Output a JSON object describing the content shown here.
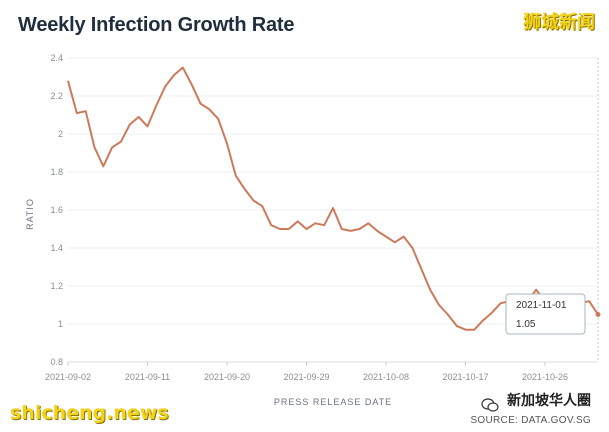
{
  "title": "Weekly Infection Growth Rate",
  "watermarks": {
    "top_right": "狮城新闻",
    "bottom_left": "shicheng.news",
    "bottom_right": "新加坡华人圈",
    "source": "SOURCE: DATA.GOV.SG"
  },
  "tooltip": {
    "date": "2021-11-01",
    "value": "1.05"
  },
  "chart_data": {
    "type": "line",
    "title": "Weekly Infection Growth Rate",
    "xlabel": "PRESS RELEASE DATE",
    "ylabel": "RATIO",
    "ylim": [
      0.8,
      2.4
    ],
    "yticks": [
      "0.8",
      "1",
      "1.2",
      "1.4",
      "1.6",
      "1.8",
      "2",
      "2.2",
      "2.4"
    ],
    "xticks": [
      "2021-09-02",
      "2021-09-11",
      "2021-09-20",
      "2021-09-29",
      "2021-10-08",
      "2021-10-17",
      "2021-10-26"
    ],
    "grid": "horizontal",
    "line_color": "#cd7a5a",
    "x": [
      "2021-09-02",
      "2021-09-03",
      "2021-09-04",
      "2021-09-05",
      "2021-09-06",
      "2021-09-07",
      "2021-09-08",
      "2021-09-09",
      "2021-09-10",
      "2021-09-11",
      "2021-09-12",
      "2021-09-13",
      "2021-09-14",
      "2021-09-15",
      "2021-09-16",
      "2021-09-17",
      "2021-09-18",
      "2021-09-19",
      "2021-09-20",
      "2021-09-21",
      "2021-09-22",
      "2021-09-23",
      "2021-09-24",
      "2021-09-25",
      "2021-09-26",
      "2021-09-27",
      "2021-09-28",
      "2021-09-29",
      "2021-09-30",
      "2021-10-01",
      "2021-10-02",
      "2021-10-03",
      "2021-10-04",
      "2021-10-05",
      "2021-10-06",
      "2021-10-07",
      "2021-10-08",
      "2021-10-09",
      "2021-10-10",
      "2021-10-11",
      "2021-10-12",
      "2021-10-13",
      "2021-10-14",
      "2021-10-15",
      "2021-10-16",
      "2021-10-17",
      "2021-10-18",
      "2021-10-19",
      "2021-10-20",
      "2021-10-21",
      "2021-10-22",
      "2021-10-23",
      "2021-10-24",
      "2021-10-25",
      "2021-10-26",
      "2021-10-27",
      "2021-10-28",
      "2021-10-29",
      "2021-10-30",
      "2021-10-31",
      "2021-11-01"
    ],
    "series": [
      {
        "values": [
          2.28,
          2.11,
          2.12,
          1.93,
          1.83,
          1.93,
          1.96,
          2.05,
          2.09,
          2.04,
          2.15,
          2.25,
          2.31,
          2.35,
          2.26,
          2.16,
          2.13,
          2.08,
          1.95,
          1.78,
          1.71,
          1.65,
          1.62,
          1.52,
          1.5,
          1.5,
          1.54,
          1.5,
          1.53,
          1.52,
          1.61,
          1.5,
          1.49,
          1.5,
          1.53,
          1.49,
          1.46,
          1.43,
          1.46,
          1.4,
          1.29,
          1.18,
          1.1,
          1.05,
          0.99,
          0.97,
          0.97,
          1.02,
          1.06,
          1.11,
          1.12,
          1.11,
          1.12,
          1.18,
          1.12,
          1.12,
          1.12,
          1.12,
          1.11,
          1.12,
          1.05
        ]
      }
    ]
  }
}
